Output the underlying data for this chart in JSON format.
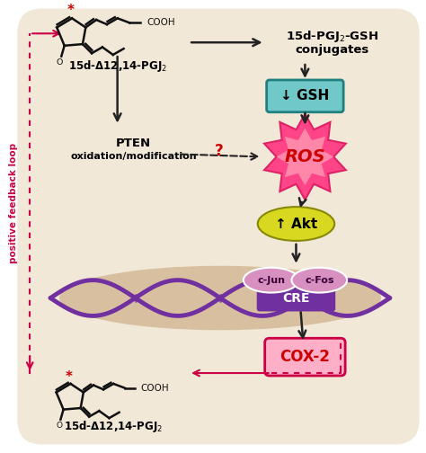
{
  "bg_color": "#f2e8d8",
  "outer_bg": "#ffffff",
  "positive_feedback_label": "positive feedback loop",
  "mol_label_top": "15d-Δ12,14-PGJ2",
  "mol_label_bot": "15d-Δ12,14-PGJ2",
  "conjugates_line1": "15d-PGJ",
  "conjugates_line2": "-GSH",
  "conjugates_line3": "conjugates",
  "gsh_label": "↓ GSH",
  "ros_label": "ROS",
  "akt_label": "↑ Akt",
  "cjun_label": "c-Jun",
  "cfos_label": "c-Fos",
  "cre_label": "CRE",
  "cox2_label": "COX-2",
  "pten_line1": "PTEN",
  "pten_line2": "oxidation/modification",
  "question_mark": "?",
  "gsh_box_color": "#70c8c8",
  "akt_color": "#d8d820",
  "ros_outer_color": "#ff4488",
  "ros_inner_color": "#ff88aa",
  "cjun_color": "#d890c0",
  "cfos_color": "#d890c0",
  "cre_color": "#7030a0",
  "cox2_fill": "#ffb0c8",
  "cox2_border": "#cc0044",
  "dna_color": "#7030a0",
  "ellipse_fill": "#d4b896",
  "feedback_color": "#cc0044",
  "arrow_color": "#222222",
  "red_star_color": "#cc0000",
  "gsh_border": "#208080"
}
